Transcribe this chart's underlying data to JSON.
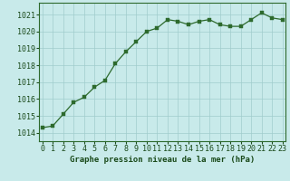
{
  "x": [
    0,
    1,
    2,
    3,
    4,
    5,
    6,
    7,
    8,
    9,
    10,
    11,
    12,
    13,
    14,
    15,
    16,
    17,
    18,
    19,
    20,
    21,
    22,
    23
  ],
  "y": [
    1014.3,
    1014.4,
    1015.1,
    1015.8,
    1016.1,
    1016.7,
    1017.1,
    1018.1,
    1018.8,
    1019.4,
    1020.0,
    1020.2,
    1020.7,
    1020.6,
    1020.4,
    1020.6,
    1020.7,
    1020.4,
    1020.3,
    1020.3,
    1020.7,
    1021.1,
    1020.8,
    1020.7
  ],
  "line_color": "#2d6a2d",
  "marker_color": "#2d6a2d",
  "bg_color": "#c8eaea",
  "grid_color": "#a0cccc",
  "xlabel": "Graphe pression niveau de la mer (hPa)",
  "xlabel_color": "#1a4a1a",
  "tick_color": "#1a4a1a",
  "ylim": [
    1013.5,
    1021.7
  ],
  "yticks": [
    1014,
    1015,
    1016,
    1017,
    1018,
    1019,
    1020,
    1021
  ],
  "xticks": [
    0,
    1,
    2,
    3,
    4,
    5,
    6,
    7,
    8,
    9,
    10,
    11,
    12,
    13,
    14,
    15,
    16,
    17,
    18,
    19,
    20,
    21,
    22,
    23
  ],
  "title_fontsize": 6.5,
  "tick_fontsize": 6.0
}
